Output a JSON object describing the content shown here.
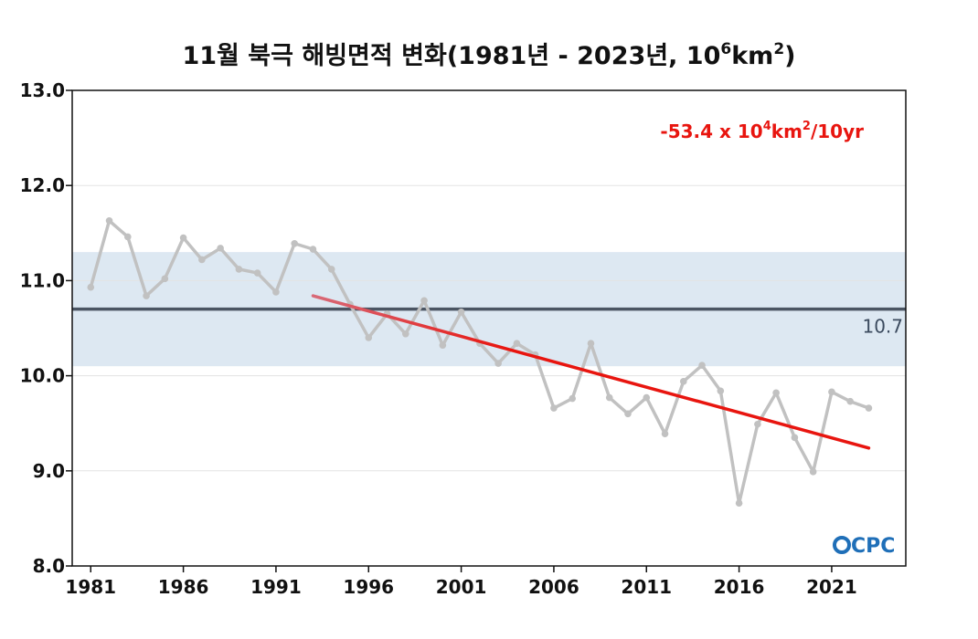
{
  "chart_data": {
    "type": "line",
    "title": {
      "part1": "11월 북극 해빙면적 변화(1981년 - 2023년, 10",
      "exp1": "6",
      "part2": "km",
      "exp2": "2",
      "part3": ")"
    },
    "x": [
      1981,
      1982,
      1983,
      1984,
      1985,
      1986,
      1987,
      1988,
      1989,
      1990,
      1991,
      1992,
      1993,
      1994,
      1995,
      1996,
      1997,
      1998,
      1999,
      2000,
      2001,
      2002,
      2003,
      2004,
      2005,
      2006,
      2007,
      2008,
      2009,
      2010,
      2011,
      2012,
      2013,
      2014,
      2015,
      2016,
      2017,
      2018,
      2019,
      2020,
      2021,
      2022,
      2023
    ],
    "series": [
      {
        "values": [
          10.93,
          11.63,
          11.46,
          10.84,
          11.02,
          11.45,
          11.22,
          11.34,
          11.12,
          11.08,
          10.88,
          11.39,
          11.33,
          11.12,
          10.75,
          10.4,
          10.65,
          10.44,
          10.79,
          10.32,
          10.67,
          10.34,
          10.13,
          10.34,
          10.22,
          9.66,
          9.76,
          10.34,
          9.77,
          9.6,
          9.77,
          9.39,
          9.94,
          10.11,
          9.84,
          8.66,
          9.49,
          9.82,
          9.35,
          8.99,
          9.83,
          9.73,
          9.66
        ],
        "color": "#c1c1c1"
      }
    ],
    "xticks": [
      "1981",
      "1986",
      "1991",
      "1996",
      "2001",
      "2006",
      "2011",
      "2016",
      "2021"
    ],
    "yticks": [
      "8.0",
      "9.0",
      "10.0",
      "11.0",
      "12.0",
      "13.0"
    ],
    "ylim": [
      8.0,
      13.0
    ],
    "xlim": [
      1980,
      2025
    ],
    "grid": true,
    "mean": {
      "value": 10.7,
      "label": "10.7",
      "color": "#4b5563"
    },
    "band": {
      "lower": 10.1,
      "upper": 11.3,
      "color": "#dde8f2"
    },
    "trend": {
      "x0": 1993,
      "y0": 10.84,
      "x1": 2023,
      "y1": 9.24,
      "color_start": "#d86a78",
      "color_end": "#e8150f",
      "label": {
        "part1": "-53.4 x 10",
        "exp1": "4",
        "part2": "km",
        "exp2": "2",
        "part3": "/10yr"
      }
    },
    "logo": "CPC"
  }
}
